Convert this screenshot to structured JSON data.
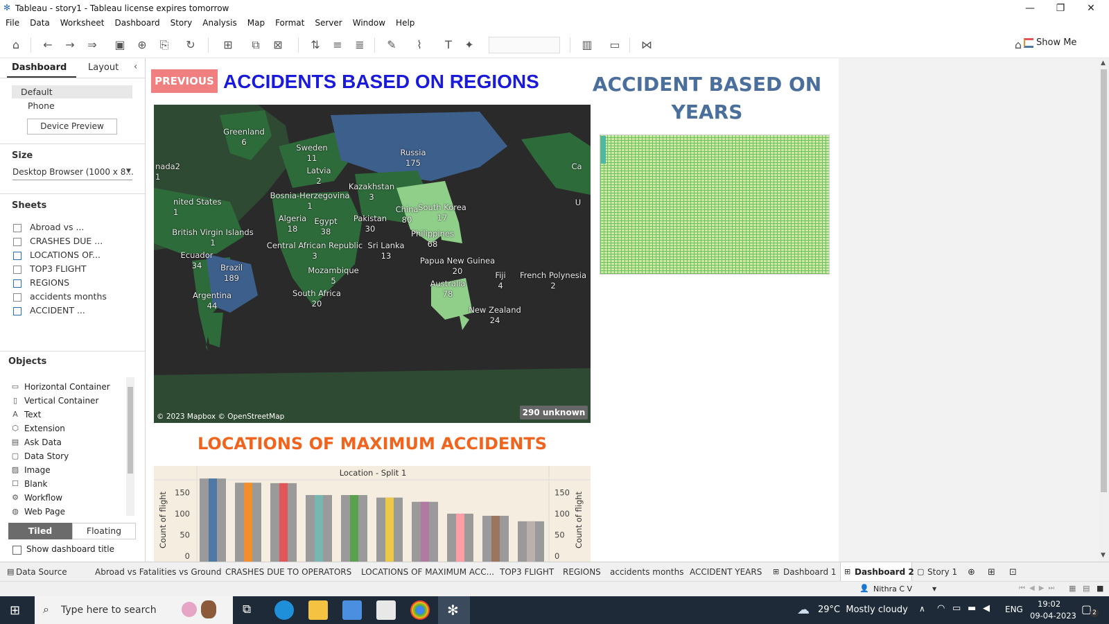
{
  "window": {
    "title": "Tableau - story1 - Tableau license expires tomorrow"
  },
  "menu": [
    "File",
    "Data",
    "Worksheet",
    "Dashboard",
    "Story",
    "Analysis",
    "Map",
    "Format",
    "Server",
    "Window",
    "Help"
  ],
  "toolbar": {
    "show_me": "Show Me"
  },
  "left_panel": {
    "tabs": [
      "Dashboard",
      "Layout"
    ],
    "device_options": [
      "Default",
      "Phone"
    ],
    "device_preview": "Device Preview",
    "size_header": "Size",
    "size_value": "Desktop Browser (1000 x 8...",
    "sheets_header": "Sheets",
    "sheets": [
      "Abroad vs ...",
      "CRASHES DUE ...",
      "LOCATIONS OF...",
      "TOP3 FLIGHT",
      "REGIONS",
      "accidents months",
      "ACCIDENT ..."
    ],
    "objects_header": "Objects",
    "objects": [
      {
        "label": "Horizontal Container",
        "icon": "horizontal-container-icon"
      },
      {
        "label": "Vertical Container",
        "icon": "vertical-container-icon"
      },
      {
        "label": "Text",
        "icon": "text-icon"
      },
      {
        "label": "Extension",
        "icon": "extension-icon"
      },
      {
        "label": "Ask Data",
        "icon": "ask-data-icon"
      },
      {
        "label": "Data Story",
        "icon": "data-story-icon"
      },
      {
        "label": "Image",
        "icon": "image-icon"
      },
      {
        "label": "Blank",
        "icon": "blank-icon"
      },
      {
        "label": "Workflow",
        "icon": "workflow-icon"
      },
      {
        "label": "Web Page",
        "icon": "web-page-icon"
      }
    ],
    "tiled": "Tiled",
    "floating": "Floating",
    "show_title": "Show dashboard title"
  },
  "dashboard": {
    "previous_button": "PREVIOUS",
    "regions_title": "ACCIDENTS BASED ON REGIONS",
    "years_title_line1": "ACCIDENT BASED ON",
    "years_title_line2": "YEARS",
    "map_credit": "© 2023 Mapbox © OpenStreetMap",
    "map_unknown": "290 unknown",
    "locations_title": "LOCATIONS OF MAXIMUM ACCIDENTS",
    "colors": {
      "previous_bg": "#f08080",
      "regions_title": "#1a1adb",
      "years_title": "#4a6f9c",
      "locations_title": "#f0641e"
    }
  },
  "map_labels": [
    {
      "name": "Greenland",
      "value": "6"
    },
    {
      "name": "Sweden",
      "value": "11"
    },
    {
      "name": "Latvia",
      "value": "2"
    },
    {
      "name": "Russia",
      "value": "175"
    },
    {
      "name": "nada2",
      "value": "1"
    },
    {
      "name": "Kazakhstan",
      "value": "3"
    },
    {
      "name": "Bosnia-Herzegovina",
      "value": "1"
    },
    {
      "name": "nited States",
      "value": "1"
    },
    {
      "name": "China",
      "value": "80"
    },
    {
      "name": "South Korea",
      "value": "17"
    },
    {
      "name": "Algeria",
      "value": "18"
    },
    {
      "name": "Egypt",
      "value": "38"
    },
    {
      "name": "Pakistan",
      "value": "30"
    },
    {
      "name": "Philippines",
      "value": "68"
    },
    {
      "name": "British Virgin Islands",
      "value": "1"
    },
    {
      "name": "Central African Republic",
      "value": "3"
    },
    {
      "name": "Sri Lanka",
      "value": "13"
    },
    {
      "name": "Ecuador",
      "value": "34"
    },
    {
      "name": "Brazil",
      "value": "189"
    },
    {
      "name": "Papua New Guinea",
      "value": "20"
    },
    {
      "name": "Mozambique",
      "value": "5"
    },
    {
      "name": "Fiji",
      "value": "4"
    },
    {
      "name": "French Polynesia",
      "value": "2"
    },
    {
      "name": "Australia",
      "value": "78"
    },
    {
      "name": "Argentina",
      "value": "44"
    },
    {
      "name": "South Africa",
      "value": "20"
    },
    {
      "name": "New Zealand",
      "value": "24"
    },
    {
      "name": "Ca",
      "value": ""
    },
    {
      "name": "U",
      "value": ""
    }
  ],
  "chart_data": {
    "type": "bar",
    "title": "Location - Split 1",
    "xlabel": "",
    "ylabel": "Count of flight",
    "yticks": [
      0,
      50,
      100,
      150
    ],
    "ylim": [
      0,
      180
    ],
    "values": [
      183,
      173,
      172,
      144,
      144,
      138,
      128,
      100,
      95,
      82
    ],
    "colors": [
      "#4e79a7",
      "#f28e2b",
      "#e15759",
      "#76b7b2",
      "#59a14f",
      "#edc948",
      "#b07aa1",
      "#ff9da7",
      "#9c755f",
      "#bab0ac"
    ]
  },
  "sheet_tabs": [
    {
      "label": "Data Source",
      "icon": "data-source-icon"
    },
    {
      "label": "Abroad vs Fatalities vs Ground",
      "icon": ""
    },
    {
      "label": "CRASHES DUE TO OPERATORS",
      "icon": ""
    },
    {
      "label": "LOCATIONS OF MAXIMUM ACC...",
      "icon": ""
    },
    {
      "label": "TOP3 FLIGHT",
      "icon": ""
    },
    {
      "label": "REGIONS",
      "icon": ""
    },
    {
      "label": "accidents months",
      "icon": ""
    },
    {
      "label": "ACCIDENT YEARS",
      "icon": ""
    },
    {
      "label": "Dashboard 1",
      "icon": "dashboard-icon"
    },
    {
      "label": "Dashboard 2",
      "icon": "dashboard-icon"
    },
    {
      "label": "Story 1",
      "icon": "story-icon"
    }
  ],
  "status": {
    "user": "Nithra C V"
  },
  "taskbar": {
    "search_placeholder": "Type here to search",
    "weather": "29°C  Mostly cloudy",
    "lang": "ENG",
    "time": "19:02",
    "date": "09-04-2023",
    "notifications": "2"
  }
}
